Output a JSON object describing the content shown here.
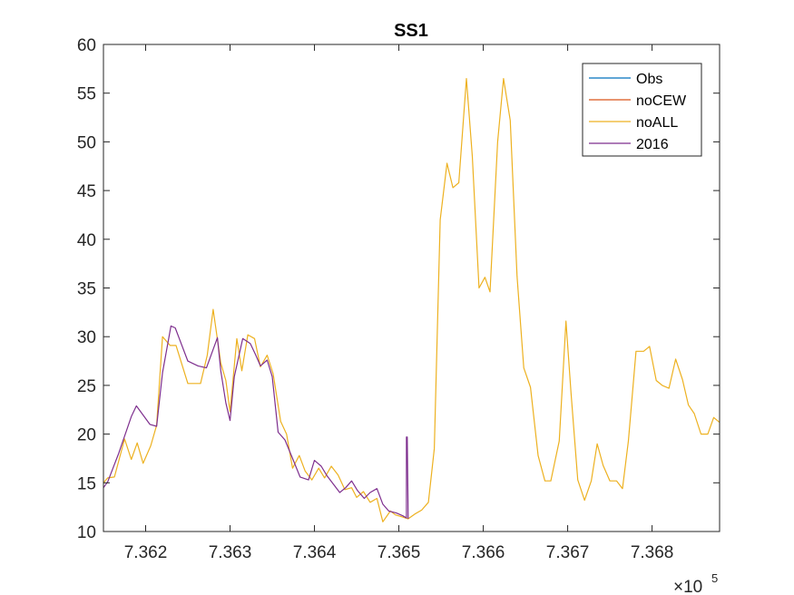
{
  "chart_data": {
    "type": "line",
    "title": "SS1",
    "xlabel": "",
    "ylabel": "",
    "xlim": [
      736150,
      736880
    ],
    "ylim": [
      10,
      60
    ],
    "x_tick_labels": [
      "7.362",
      "7.363",
      "7.364",
      "7.365",
      "7.366",
      "7.367",
      "7.368"
    ],
    "x_tick_values": [
      736200,
      736300,
      736400,
      736500,
      736600,
      736700,
      736800
    ],
    "x_exponent_base": "×10",
    "x_exponent_power": "5",
    "y_ticks": [
      10,
      15,
      20,
      25,
      30,
      35,
      40,
      45,
      50,
      55,
      60
    ],
    "grid": false,
    "legend_position": "top-right",
    "series": [
      {
        "name": "Obs",
        "color": "#0072BD",
        "x": [],
        "y": []
      },
      {
        "name": "noCEW",
        "color": "#D95319",
        "x": [],
        "y": []
      },
      {
        "name": "noALL",
        "color": "#EDB120",
        "x": [
          736150,
          736155,
          736163,
          736175,
          736183,
          736190,
          736197,
          736206,
          736213,
          736220,
          736229,
          736236,
          736250,
          736265,
          736273,
          736280,
          736289,
          736295,
          736300,
          736308,
          736314,
          736321,
          736329,
          736336,
          736344,
          736351,
          736360,
          736367,
          736374,
          736382,
          736389,
          736397,
          736405,
          736412,
          736420,
          736428,
          736436,
          736444,
          736450,
          736458,
          736466,
          736474,
          736481,
          736490,
          736496,
          736504,
          736511,
          736519,
          736527,
          736535,
          736542,
          736549,
          736557,
          736564,
          736571,
          736580,
          736587,
          736595,
          736602,
          736608,
          736617,
          736624,
          736632,
          736640,
          736648,
          736656,
          736665,
          736673,
          736680,
          736690,
          736698,
          736704,
          736712,
          736720,
          736728,
          736735,
          736742,
          736750,
          736758,
          736765,
          736772,
          736781,
          736790,
          736797,
          736805,
          736812,
          736820,
          736828,
          736836,
          736843,
          736850,
          736858,
          736866,
          736873,
          736880
        ],
        "y": [
          15,
          15.5,
          15.6,
          19.5,
          17.4,
          19.1,
          17,
          18.8,
          20.9,
          30,
          29.1,
          29.1,
          25.2,
          25.2,
          28.1,
          32.8,
          27.3,
          25.5,
          22.3,
          29.8,
          26.5,
          30.2,
          29.8,
          26.9,
          28.1,
          26.2,
          21.3,
          20,
          16.5,
          17.8,
          16.2,
          15.3,
          16.5,
          15.5,
          16.7,
          15.8,
          14.3,
          14.5,
          13.5,
          14.1,
          13,
          13.4,
          11,
          12.1,
          11.7,
          11.5,
          11.3,
          11.8,
          12.2,
          13,
          18.5,
          42,
          47.8,
          45.3,
          45.8,
          56.5,
          48.5,
          35,
          36.1,
          34.6,
          50,
          56.5,
          52.2,
          36.2,
          26.8,
          24.8,
          17.8,
          15.2,
          15.2,
          19.3,
          31.6,
          24.2,
          15.3,
          13.2,
          15.2,
          19,
          16.8,
          15.2,
          15.2,
          14.4,
          19.3,
          28.5,
          28.5,
          29,
          25.5,
          25,
          24.7,
          27.7,
          25.6,
          23,
          22.1,
          20,
          20,
          21.7,
          21.2
        ]
      },
      {
        "name": "2016",
        "color": "#7E2F8E",
        "x": [
          736150,
          736155,
          736168,
          736183,
          736189,
          736205,
          736213,
          736220,
          736230,
          736235,
          736250,
          736262,
          736272,
          736285,
          736289,
          736295,
          736300,
          736305,
          736315,
          736324,
          736330,
          736336,
          736344,
          736350,
          736357,
          736365,
          736374,
          736383,
          736393,
          736400,
          736408,
          736415,
          736430,
          736437,
          736444,
          736451,
          736459,
          736466,
          736474,
          736481,
          736488,
          736497,
          736505,
          736509,
          736509,
          736510,
          736511,
          736511
        ],
        "y": [
          14.5,
          15.1,
          18,
          21.8,
          22.9,
          21,
          20.8,
          26.3,
          31.1,
          30.9,
          27.5,
          27,
          26.8,
          29.9,
          26.5,
          23.2,
          21.4,
          25.9,
          29.8,
          29.3,
          28.2,
          27,
          27.6,
          25.9,
          20.2,
          19.4,
          17.5,
          15.6,
          15.3,
          17.3,
          16.7,
          15.7,
          14,
          14.5,
          15.2,
          14.2,
          13.4,
          14,
          14.4,
          12.8,
          12.1,
          11.9,
          11.6,
          11.4,
          19.7,
          19.7,
          11.4,
          11.3
        ]
      }
    ]
  }
}
